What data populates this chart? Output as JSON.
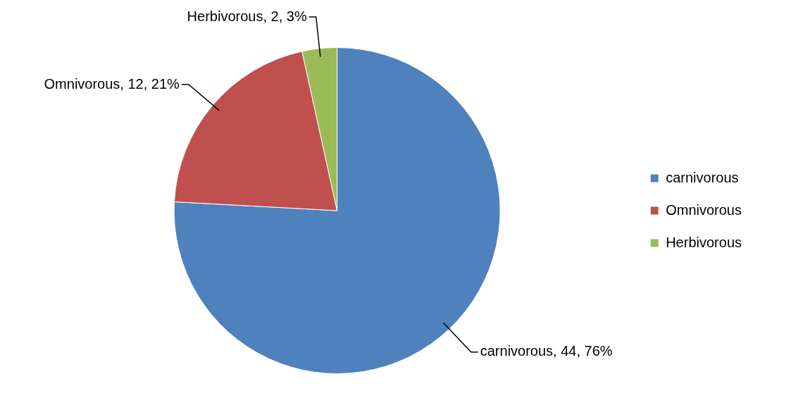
{
  "chart_data": {
    "type": "pie",
    "categories": [
      "carnivorous",
      "Omnivorous",
      "Herbivorous"
    ],
    "values": [
      44,
      12,
      2
    ],
    "colors": [
      "#4f81bd",
      "#c0504d",
      "#9bbb59"
    ],
    "value_labels": [
      "carnivorous, 44, 76%",
      "Omnivorous, 12, 21%",
      "Herbivorous, 2, 3%"
    ],
    "legend": "right"
  }
}
